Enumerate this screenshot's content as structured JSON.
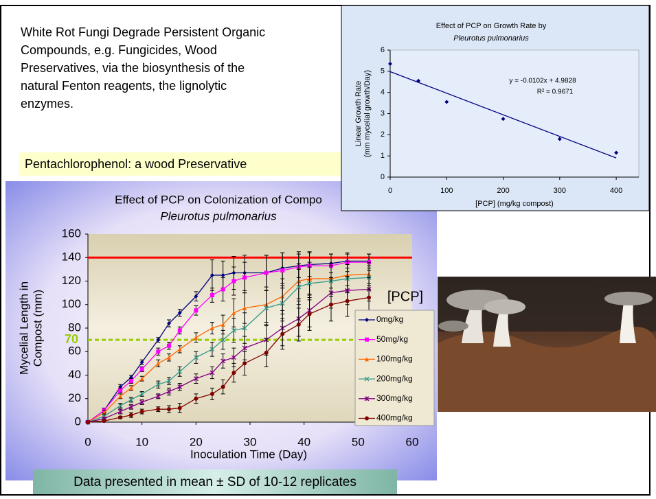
{
  "slide": {
    "paragraph": [
      "White Rot Fungi Degrade Persistent Organic",
      "Compounds, e.g. Fungicides, Wood",
      "Preservatives, via the biosynthesis of the",
      "natural Fenton reagents, the lignolytic",
      "enzymes."
    ],
    "callout": "Pentachlorophenol: a wood Preservative",
    "footer": "Data presented in mean ± SD of 10-12 replicates"
  },
  "chart_data": [
    {
      "type": "scatter",
      "title": "Effect of  PCP on Growth Rate by",
      "subtitle": "Pleurotus pulmonarius",
      "x_label": "[PCP] (mg/kg compost)",
      "y_label": [
        "Linear Growth Rate",
        "(mm mycelial growth/Day)"
      ],
      "x": [
        0,
        50,
        100,
        200,
        300,
        400
      ],
      "values": [
        5.35,
        4.55,
        3.55,
        2.75,
        1.8,
        1.15
      ],
      "color": "#000080",
      "xlim": [
        0,
        440
      ],
      "xticks": [
        0,
        100,
        200,
        300,
        400
      ],
      "ylim": [
        0,
        6
      ],
      "yticks": [
        0,
        1,
        2,
        3,
        4,
        5,
        6
      ],
      "trendline": {
        "slope": -0.0102,
        "intercept": 4.9828,
        "color": "#000080",
        "equation": "y = -0.0102x + 4.9828",
        "r2": "R² = 0.9671"
      }
    },
    {
      "type": "line",
      "title": "Effect of  PCP on Colonization of Compo",
      "subtitle": "Pleurotus pulmonarius",
      "x_label": "Inoculation Time (Day)",
      "y_label": [
        "Mycelial Length in",
        "Compost (mm)"
      ],
      "legend_title": "[PCP]",
      "x": [
        0,
        3,
        6,
        8,
        10,
        13,
        15,
        17,
        20,
        23,
        25,
        27,
        29,
        33,
        36,
        39,
        41,
        45,
        48,
        52
      ],
      "xlim": [
        0,
        60
      ],
      "xticks": [
        0,
        10,
        20,
        30,
        40,
        50,
        60
      ],
      "ylim": [
        0,
        160
      ],
      "yticks": [
        0,
        20,
        40,
        60,
        80,
        100,
        120,
        140,
        160
      ],
      "hlines": [
        {
          "value": 140,
          "color": "#ff0000",
          "dash": false
        },
        {
          "value": 70,
          "color": "#99cc00",
          "dash": true
        }
      ],
      "series": [
        {
          "name": "0mg/kg",
          "color": "#000080",
          "marker": "diamond",
          "values": [
            0,
            10,
            30,
            38,
            51,
            70,
            84,
            93,
            107,
            125,
            125,
            127,
            127,
            127,
            131,
            133,
            134,
            135,
            137,
            137
          ],
          "errors": [
            0,
            2,
            2,
            2,
            2,
            2,
            3,
            3,
            4,
            13,
            12,
            14,
            15,
            15,
            13,
            10,
            10,
            8,
            6,
            6
          ]
        },
        {
          "name": "50mg/kg",
          "color": "#ff00ff",
          "marker": "square",
          "values": [
            0,
            10,
            27,
            35,
            45,
            60,
            65,
            78,
            95,
            108,
            113,
            120,
            123,
            127,
            129,
            132,
            133,
            133,
            136,
            136
          ],
          "errors": [
            0,
            2,
            2,
            2,
            2,
            3,
            3,
            3,
            4,
            6,
            10,
            12,
            13,
            15,
            15,
            13,
            12,
            10,
            8,
            7
          ]
        },
        {
          "name": "100mg/kg",
          "color": "#ff6600",
          "marker": "triangle",
          "values": [
            0,
            8,
            22,
            29,
            37,
            50,
            55,
            62,
            72,
            80,
            83,
            93,
            97,
            100,
            107,
            120,
            122,
            122,
            125,
            126
          ],
          "errors": [
            0,
            2,
            2,
            2,
            2,
            3,
            3,
            3,
            4,
            5,
            8,
            12,
            13,
            15,
            15,
            15,
            14,
            13,
            12,
            10
          ]
        },
        {
          "name": "200mg/kg",
          "color": "#339988",
          "marker": "cross",
          "values": [
            0,
            5,
            14,
            19,
            24,
            32,
            35,
            43,
            55,
            62,
            70,
            78,
            80,
            97,
            101,
            115,
            118,
            120,
            122,
            123
          ],
          "errors": [
            0,
            2,
            2,
            2,
            2,
            3,
            3,
            4,
            5,
            6,
            8,
            10,
            13,
            15,
            15,
            15,
            14,
            13,
            12,
            10
          ]
        },
        {
          "name": "300mg/kg",
          "color": "#800080",
          "marker": "star",
          "values": [
            0,
            3,
            9,
            13,
            17,
            22,
            26,
            30,
            37,
            42,
            52,
            55,
            63,
            70,
            80,
            88,
            95,
            110,
            112,
            113
          ],
          "errors": [
            0,
            1,
            2,
            2,
            2,
            2,
            3,
            3,
            4,
            5,
            6,
            8,
            10,
            13,
            15,
            15,
            14,
            13,
            12,
            10
          ]
        },
        {
          "name": "400mg/kg",
          "color": "#800000",
          "marker": "circle",
          "values": [
            0,
            1,
            4,
            6,
            9,
            11,
            11,
            12,
            20,
            24,
            30,
            42,
            50,
            59,
            75,
            83,
            92,
            100,
            103,
            106
          ],
          "errors": [
            0,
            1,
            1,
            2,
            2,
            2,
            3,
            4,
            4,
            5,
            6,
            8,
            10,
            12,
            13,
            14,
            14,
            14,
            13,
            12
          ]
        }
      ]
    }
  ]
}
